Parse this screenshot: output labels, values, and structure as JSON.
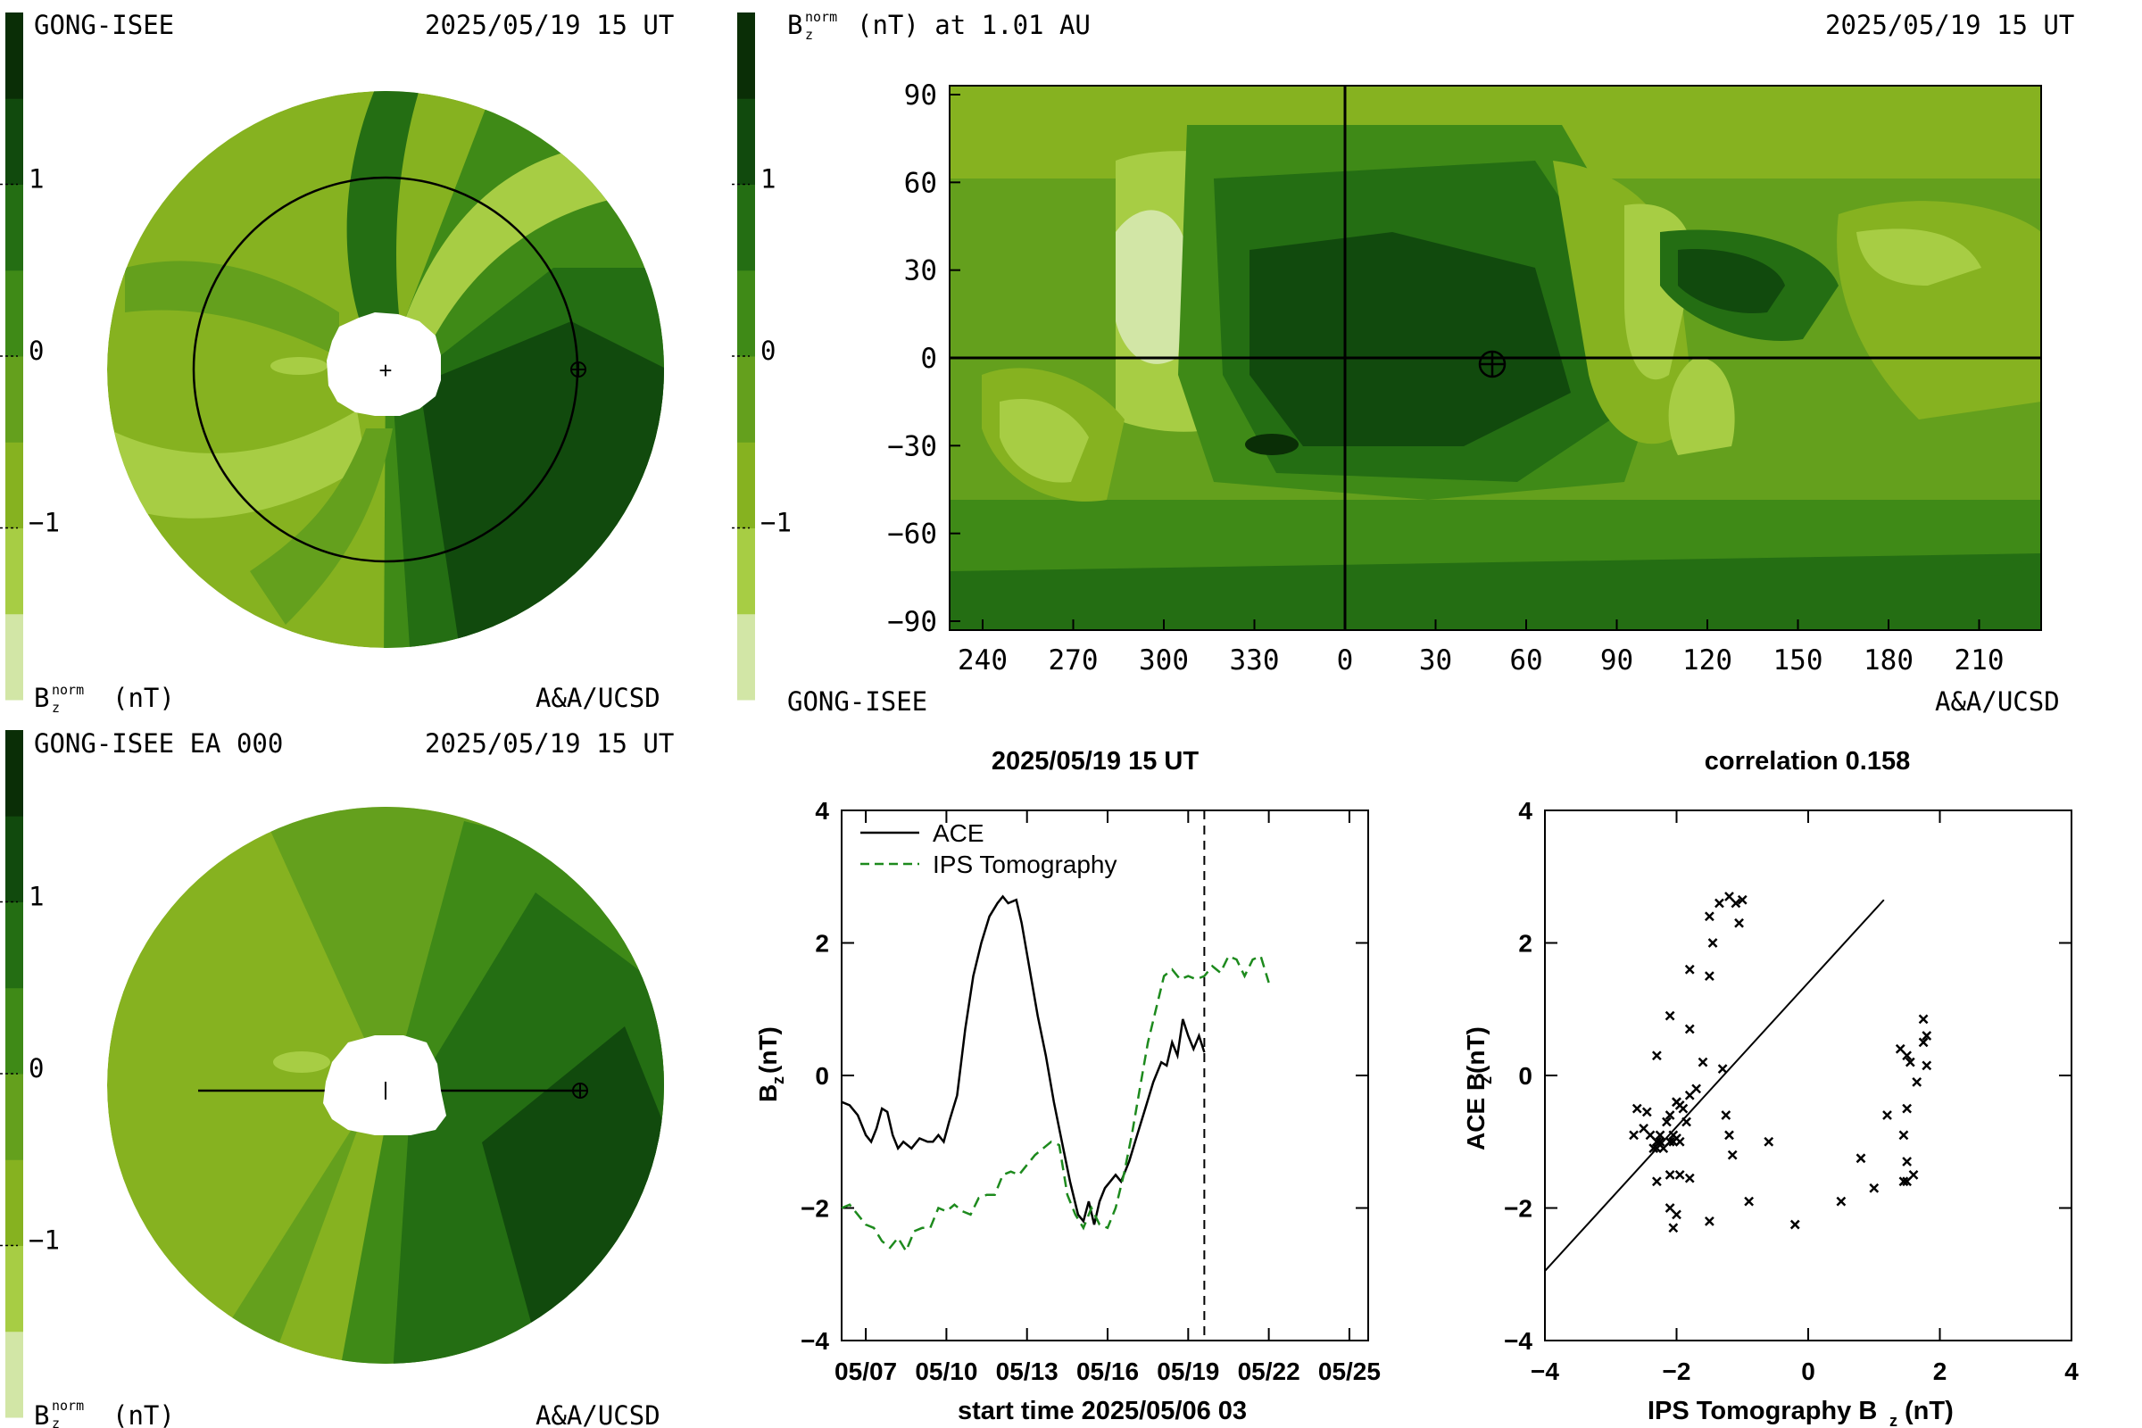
{
  "colors": {
    "scale": [
      "#d2e6a6",
      "#a7cd44",
      "#86b220",
      "#64a01d",
      "#3f8a17",
      "#246e13",
      "#114a0d",
      "#0a2e06"
    ],
    "ips_line": "#1d8a1d",
    "ace_line": "#000000"
  },
  "colorbar": {
    "ticks": [
      1,
      0,
      -1
    ],
    "tick_labels": [
      "1",
      "0",
      "−1"
    ]
  },
  "panel_tl": {
    "left_label": "GONG-ISEE",
    "right_label": "2025/05/19 15 UT",
    "bottom_left": "(nT)",
    "bottom_left_sym": "B",
    "sub": "z",
    "sup": "norm",
    "bottom_right": "A&A/UCSD"
  },
  "panel_bl": {
    "left_label": "GONG-ISEE EA 000",
    "right_label": "2025/05/19 15 UT",
    "bottom_left": "(nT)",
    "bottom_left_sym": "B",
    "sub": "z",
    "sup": "norm",
    "bottom_right": "A&A/UCSD"
  },
  "panel_tr": {
    "title_sym": "B",
    "title_sub": "z",
    "title_sup": "norm",
    "title_rest": "(nT) at 1.01 AU",
    "right_label": "2025/05/19 15 UT",
    "bottom_left": "GONG-ISEE",
    "bottom_right": "A&A/UCSD",
    "x_ticks": [
      "240",
      "270",
      "300",
      "330",
      "0",
      "30",
      "60",
      "90",
      "120",
      "150",
      "180",
      "210"
    ],
    "y_ticks": [
      "90",
      "60",
      "30",
      "0",
      "−30",
      "−60",
      "−90"
    ]
  },
  "chart_data": [
    {
      "type": "line",
      "title": "2025/05/19 15 UT",
      "xlabel": "start time 2025/05/06 03",
      "ylabel": "B",
      "ylabel_sub": "z",
      "ylabel_unit": "(nT)",
      "ylim": [
        -4,
        4
      ],
      "x_tick_labels": [
        "05/07",
        "05/10",
        "05/13",
        "05/16",
        "05/19",
        "05/22",
        "05/25"
      ],
      "y_tick_labels": [
        "4",
        "2",
        "0",
        "−2",
        "−4"
      ],
      "marker_line_day": 13.5,
      "series": [
        {
          "name": "ACE",
          "style": "solid",
          "x": [
            0,
            0.3,
            0.6,
            0.9,
            1.1,
            1.3,
            1.5,
            1.7,
            1.9,
            2.1,
            2.3,
            2.6,
            2.9,
            3.2,
            3.4,
            3.6,
            3.8,
            4.0,
            4.3,
            4.6,
            4.9,
            5.2,
            5.5,
            5.8,
            6.0,
            6.2,
            6.5,
            6.7,
            7.0,
            7.3,
            7.6,
            7.9,
            8.2,
            8.5,
            8.8,
            9.0,
            9.2,
            9.4,
            9.6,
            9.8,
            10.0,
            10.2,
            10.4,
            10.7,
            11.0,
            11.3,
            11.6,
            11.9,
            12.1,
            12.3,
            12.5,
            12.7,
            12.9,
            13.1,
            13.3,
            13.5
          ],
          "values": [
            -0.4,
            -0.45,
            -0.6,
            -0.9,
            -1.0,
            -0.8,
            -0.5,
            -0.55,
            -0.9,
            -1.1,
            -1.0,
            -1.1,
            -0.95,
            -1.0,
            -1.0,
            -0.9,
            -1.0,
            -0.7,
            -0.3,
            0.7,
            1.5,
            2.0,
            2.4,
            2.6,
            2.7,
            2.6,
            2.65,
            2.3,
            1.6,
            0.9,
            0.3,
            -0.4,
            -1.0,
            -1.6,
            -2.1,
            -2.2,
            -1.9,
            -2.25,
            -1.9,
            -1.7,
            -1.6,
            -1.5,
            -1.6,
            -1.3,
            -0.9,
            -0.5,
            -0.1,
            0.2,
            0.15,
            0.5,
            0.3,
            0.85,
            0.6,
            0.4,
            0.6,
            0.35
          ]
        },
        {
          "name": "IPS Tomography",
          "style": "dashed",
          "x": [
            0,
            0.3,
            0.6,
            0.9,
            1.2,
            1.5,
            1.8,
            2.1,
            2.4,
            2.7,
            3.0,
            3.3,
            3.6,
            3.9,
            4.2,
            4.5,
            4.8,
            5.1,
            5.4,
            5.7,
            6.0,
            6.3,
            6.6,
            6.9,
            7.2,
            7.5,
            7.8,
            8.1,
            8.4,
            8.7,
            9.0,
            9.3,
            9.6,
            9.9,
            10.2,
            10.5,
            10.8,
            11.1,
            11.4,
            11.7,
            12.0,
            12.3,
            12.6,
            12.9,
            13.2,
            13.5,
            13.8,
            14.1,
            14.4,
            14.7,
            15.0,
            15.3,
            15.6,
            15.9
          ],
          "values": [
            -2.0,
            -1.95,
            -2.1,
            -2.25,
            -2.3,
            -2.5,
            -2.6,
            -2.45,
            -2.65,
            -2.35,
            -2.3,
            -2.3,
            -2.0,
            -2.05,
            -1.95,
            -2.05,
            -2.1,
            -1.85,
            -1.8,
            -1.8,
            -1.5,
            -1.45,
            -1.5,
            -1.35,
            -1.2,
            -1.1,
            -1.0,
            -1.05,
            -1.8,
            -2.1,
            -2.3,
            -2.0,
            -2.25,
            -2.3,
            -2.0,
            -1.5,
            -0.9,
            -0.2,
            0.5,
            1.0,
            1.5,
            1.6,
            1.45,
            1.5,
            1.45,
            1.5,
            1.65,
            1.55,
            1.8,
            1.75,
            1.5,
            1.75,
            1.8,
            1.4
          ]
        }
      ]
    },
    {
      "type": "scatter",
      "title": "correlation 0.158",
      "xlabel": "IPS Tomography B",
      "xlabel_sub": "z",
      "xlabel_unit": "(nT)",
      "ylabel": "ACE B",
      "ylabel_sub": "z",
      "ylabel_unit": "(nT)",
      "xlim": [
        -4,
        4
      ],
      "ylim": [
        -4,
        4
      ],
      "x_tick_labels": [
        "−4",
        "−2",
        "0",
        "2",
        "4"
      ],
      "y_tick_labels": [
        "4",
        "2",
        "0",
        "−2",
        "−4"
      ],
      "fit_line": {
        "x": [
          -4,
          1.15
        ],
        "y": [
          -2.95,
          2.65
        ]
      },
      "points": [
        [
          -2.0,
          -0.4
        ],
        [
          -1.95,
          -0.45
        ],
        [
          -2.1,
          -0.6
        ],
        [
          -2.25,
          -0.9
        ],
        [
          -2.3,
          -1.0
        ],
        [
          -2.5,
          -0.8
        ],
        [
          -2.6,
          -0.5
        ],
        [
          -2.45,
          -0.55
        ],
        [
          -2.65,
          -0.9
        ],
        [
          -2.35,
          -1.1
        ],
        [
          -2.3,
          -1.0
        ],
        [
          -2.3,
          -1.1
        ],
        [
          -2.0,
          -0.95
        ],
        [
          -2.05,
          -1.0
        ],
        [
          -1.95,
          -1.0
        ],
        [
          -2.05,
          -0.9
        ],
        [
          -2.1,
          -1.0
        ],
        [
          -1.85,
          -0.7
        ],
        [
          -1.8,
          -0.3
        ],
        [
          -1.8,
          0.7
        ],
        [
          -1.5,
          1.5
        ],
        [
          -1.45,
          2.0
        ],
        [
          -1.5,
          2.4
        ],
        [
          -1.35,
          2.6
        ],
        [
          -1.2,
          2.7
        ],
        [
          -1.1,
          2.6
        ],
        [
          -1.0,
          2.65
        ],
        [
          -1.05,
          2.3
        ],
        [
          -1.8,
          1.6
        ],
        [
          -2.1,
          0.9
        ],
        [
          -2.3,
          0.3
        ],
        [
          -2.0,
          -0.4
        ],
        [
          -2.25,
          -1.0
        ],
        [
          -2.3,
          -1.6
        ],
        [
          -2.0,
          -2.1
        ],
        [
          -1.5,
          -2.2
        ],
        [
          -0.9,
          -1.9
        ],
        [
          -0.2,
          -2.25
        ],
        [
          0.5,
          -1.9
        ],
        [
          1.0,
          -1.7
        ],
        [
          1.5,
          -1.6
        ],
        [
          1.6,
          -1.5
        ],
        [
          1.45,
          -1.6
        ],
        [
          1.5,
          -1.3
        ],
        [
          1.45,
          -0.9
        ],
        [
          1.5,
          -0.5
        ],
        [
          1.65,
          -0.1
        ],
        [
          1.55,
          0.2
        ],
        [
          1.8,
          0.15
        ],
        [
          1.75,
          0.5
        ],
        [
          1.5,
          0.3
        ],
        [
          1.75,
          0.85
        ],
        [
          1.8,
          0.6
        ],
        [
          1.4,
          0.4
        ],
        [
          -2.2,
          -1.1
        ],
        [
          -2.15,
          -0.7
        ],
        [
          -1.9,
          -0.5
        ],
        [
          -1.7,
          -0.2
        ],
        [
          -1.6,
          0.2
        ],
        [
          -1.25,
          -0.6
        ],
        [
          -1.2,
          -0.9
        ],
        [
          -1.3,
          0.1
        ],
        [
          -1.15,
          -1.2
        ],
        [
          -2.4,
          -0.9
        ],
        [
          -2.1,
          -1.5
        ],
        [
          -1.95,
          -1.5
        ],
        [
          -2.1,
          -2.0
        ],
        [
          -2.05,
          -2.3
        ],
        [
          -1.8,
          -1.55
        ],
        [
          -0.6,
          -1.0
        ],
        [
          0.8,
          -1.25
        ],
        [
          1.2,
          -0.6
        ]
      ]
    }
  ]
}
